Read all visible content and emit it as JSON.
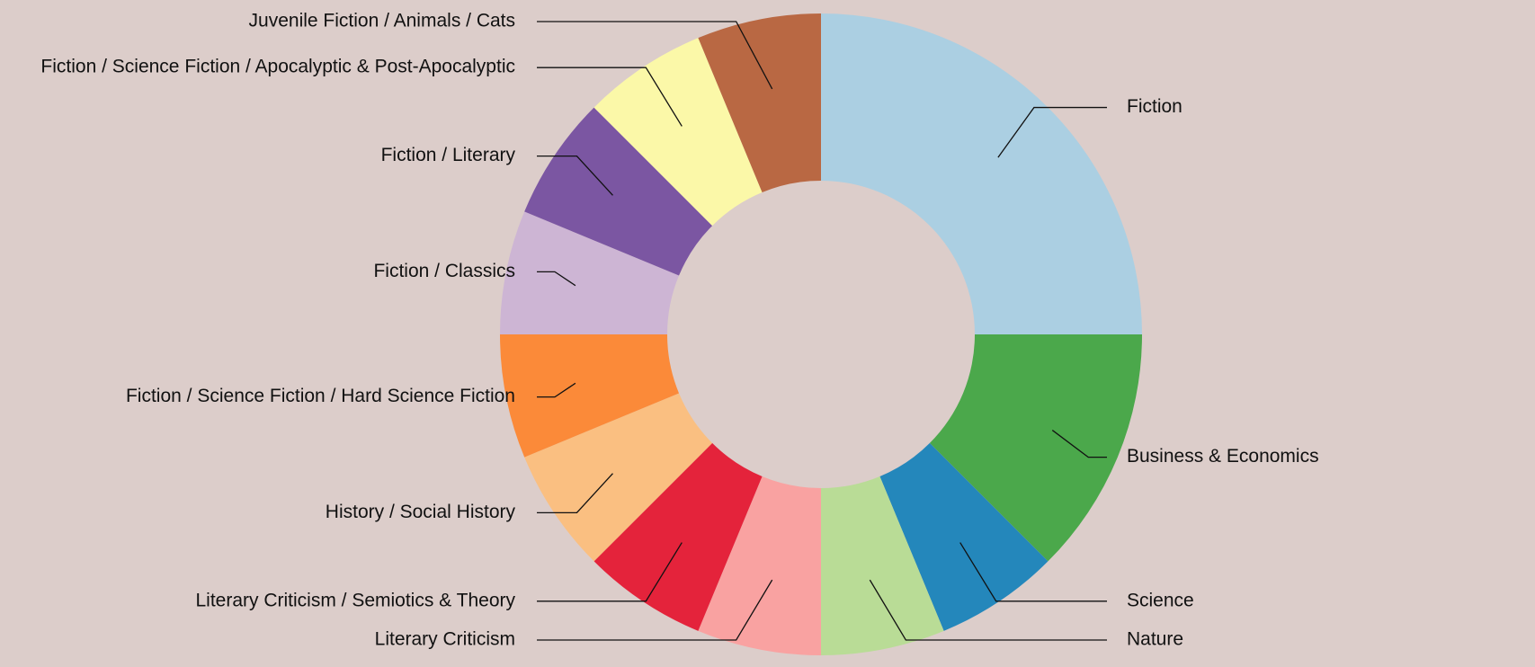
{
  "chart_data": {
    "type": "pie",
    "variant": "donut",
    "title": "",
    "legend": "none",
    "background": "#dccdca",
    "slices": [
      {
        "label": "Fiction",
        "value": 4,
        "color": "#abcfe2"
      },
      {
        "label": "Business & Economics",
        "value": 2,
        "color": "#4ba84b"
      },
      {
        "label": "Science",
        "value": 1,
        "color": "#2487bb"
      },
      {
        "label": "Nature",
        "value": 1,
        "color": "#b9dc96"
      },
      {
        "label": "Literary Criticism",
        "value": 1,
        "color": "#f9a2a1"
      },
      {
        "label": "Literary Criticism / Semiotics & Theory",
        "value": 1,
        "color": "#e4233b"
      },
      {
        "label": "History / Social History",
        "value": 1,
        "color": "#fabf81"
      },
      {
        "label": "Fiction / Science Fiction / Hard Science Fiction",
        "value": 1,
        "color": "#fb8a39"
      },
      {
        "label": "Fiction / Classics",
        "value": 1,
        "color": "#cdb5d4"
      },
      {
        "label": "Fiction / Literary",
        "value": 1,
        "color": "#7b56a2"
      },
      {
        "label": "Fiction / Science Fiction / Apocalyptic & Post-Apocalyptic",
        "value": 1,
        "color": "#fbf8a8"
      },
      {
        "label": "Juvenile Fiction / Animals / Cats",
        "value": 1,
        "color": "#b96843"
      }
    ]
  }
}
